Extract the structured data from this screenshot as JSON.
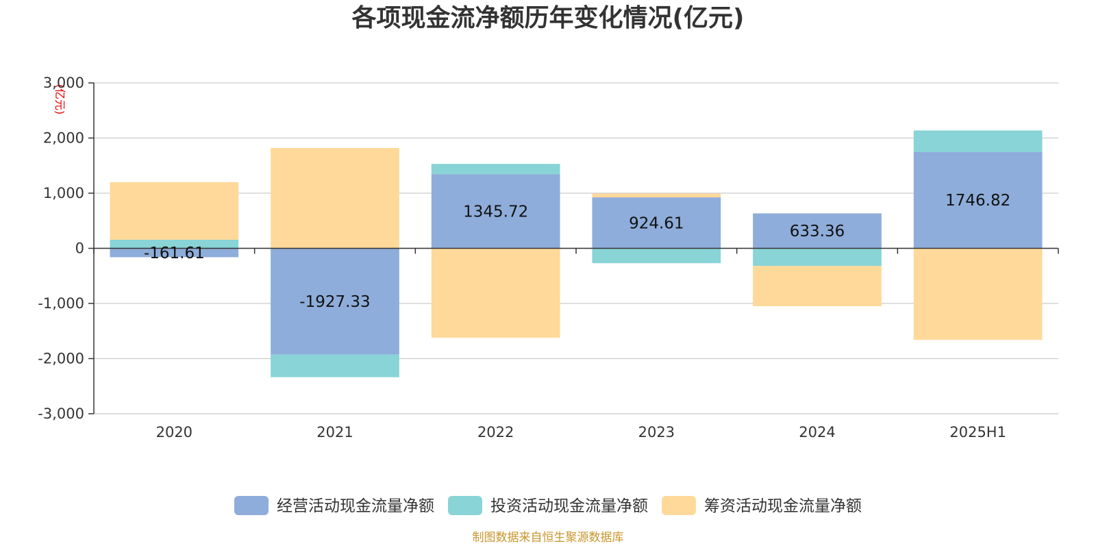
{
  "chart_data": {
    "type": "bar",
    "stacked": true,
    "title": "各项现金流净额历年变化情况(亿元)",
    "unit_label": "(亿元)",
    "categories": [
      "2020",
      "2021",
      "2022",
      "2023",
      "2024",
      "2025H1"
    ],
    "series": [
      {
        "name": "经营活动现金流量净额",
        "color": "#8eadda",
        "values": [
          -161.61,
          -1927.33,
          1345.72,
          924.61,
          633.36,
          1746.82
        ],
        "labels": [
          "-161.61",
          "-1927.33",
          "1345.72",
          "924.61",
          "633.36",
          "1746.82"
        ]
      },
      {
        "name": "投资活动现金流量净额",
        "color": "#88d4d6",
        "values": [
          155,
          -410,
          185,
          -270,
          -320,
          390
        ]
      },
      {
        "name": "筹资活动现金流量净额",
        "color": "#ffd999",
        "values": [
          1045,
          1820,
          -1620,
          70,
          -730,
          -1660
        ]
      }
    ],
    "yticks": [
      "3,000",
      "2,000",
      "1,000",
      "0",
      "-1,000",
      "-2,000",
      "-3,000"
    ],
    "ylim": [
      -3000,
      3000
    ],
    "grid": true,
    "legend_position": "bottom"
  },
  "source": "制图数据来自恒生聚源数据库"
}
